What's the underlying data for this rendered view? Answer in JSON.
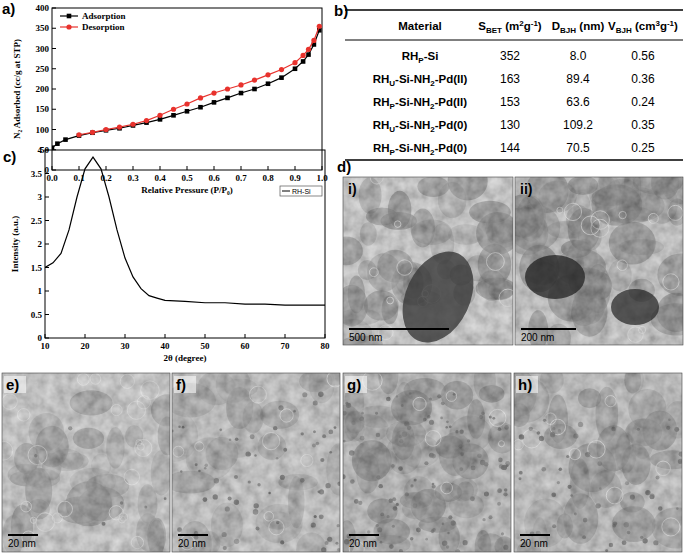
{
  "panel_labels": [
    "a)",
    "b)",
    "c)",
    "d)",
    "e)",
    "f)",
    "g)",
    "h)"
  ],
  "chart_data": [
    {
      "type": "line",
      "xlabel": "Relative Pressure (P/P₀)",
      "ylabel": "N₂ Adsorbed (cc/g at STP)",
      "x": [
        0.0,
        0.02,
        0.05,
        0.1,
        0.15,
        0.2,
        0.25,
        0.3,
        0.35,
        0.4,
        0.45,
        0.5,
        0.55,
        0.6,
        0.65,
        0.7,
        0.75,
        0.8,
        0.85,
        0.9,
        0.93,
        0.95,
        0.97,
        0.99
      ],
      "series": [
        {
          "name": "Adsorption",
          "color": "#000000",
          "marker": "square",
          "line_style": "solid",
          "values": [
            55,
            65,
            75,
            85,
            92,
            98,
            103,
            110,
            117,
            125,
            135,
            145,
            155,
            167,
            178,
            190,
            200,
            213,
            228,
            250,
            268,
            285,
            310,
            345
          ]
        },
        {
          "name": "Desorption",
          "color": "#e8322d",
          "marker": "circle",
          "line_style": "solid",
          "values": [
            null,
            null,
            null,
            87,
            93,
            100,
            106,
            113,
            122,
            135,
            150,
            163,
            178,
            190,
            200,
            210,
            222,
            235,
            248,
            265,
            283,
            298,
            320,
            355
          ]
        }
      ],
      "xlim": [
        0.0,
        1.0
      ],
      "xticks": [
        {
          "value": 0.0,
          "label": "0.0"
        },
        0.1,
        0.2,
        0.3,
        0.4,
        0.5,
        0.6,
        0.7,
        0.8,
        0.9,
        {
          "value": 1.0,
          "label": "1.0"
        }
      ],
      "ylim": [
        0,
        400
      ],
      "yticks": [
        0,
        50,
        100,
        150,
        200,
        250,
        300,
        350,
        400
      ],
      "grid": false,
      "legend": "upper left",
      "annotations": [
        "RH-Si"
      ]
    },
    {
      "type": "line",
      "xlabel": "2θ (degree)",
      "ylabel": "Intensity (a.u.)",
      "x": [
        10,
        12,
        14,
        16,
        18,
        20,
        22,
        24,
        26,
        28,
        30,
        32,
        34,
        36,
        38,
        40,
        45,
        50,
        55,
        60,
        65,
        70,
        75,
        80
      ],
      "series": [
        {
          "name": "RH-Si",
          "color": "#000000",
          "marker": "none",
          "line_style": "solid",
          "values": [
            1.5,
            1.6,
            1.8,
            2.3,
            3.0,
            3.6,
            3.85,
            3.6,
            3.0,
            2.3,
            1.7,
            1.3,
            1.05,
            0.9,
            0.85,
            0.8,
            0.78,
            0.75,
            0.75,
            0.72,
            0.72,
            0.7,
            0.7,
            0.7
          ]
        }
      ],
      "xlim": [
        10,
        80
      ],
      "xticks": [
        10,
        20,
        30,
        40,
        50,
        60,
        70,
        80
      ],
      "ylim": [
        0,
        4
      ],
      "yticks": [
        0,
        0.5,
        1,
        1.5,
        2,
        2.5,
        3,
        3.5,
        4
      ],
      "grid": false
    }
  ],
  "table": {
    "header": [
      [
        {
          "t": "Material"
        }
      ],
      [
        {
          "t": "S"
        },
        {
          "t": "BET",
          "sub": true
        },
        {
          "t": " (m"
        },
        {
          "t": "2",
          "sup": true
        },
        {
          "t": "g"
        },
        {
          "t": "-1",
          "sup": true
        },
        {
          "t": ")"
        }
      ],
      [
        {
          "t": "D"
        },
        {
          "t": "BJH",
          "sub": true
        },
        {
          "t": " (nm)"
        }
      ],
      [
        {
          "t": "V"
        },
        {
          "t": "BJH",
          "sub": true
        },
        {
          "t": " (cm"
        },
        {
          "t": "3",
          "sup": true
        },
        {
          "t": "g"
        },
        {
          "t": "-1",
          "sup": true
        },
        {
          "t": ")"
        }
      ]
    ],
    "rows": [
      [
        [
          {
            "t": "RH"
          },
          {
            "t": "P",
            "sub": true
          },
          {
            "t": "-Si"
          }
        ],
        "352",
        "8.0",
        "0.56"
      ],
      [
        [
          {
            "t": "RH"
          },
          {
            "t": "U",
            "sub": true
          },
          {
            "t": "-Si-NH"
          },
          {
            "t": "2",
            "sub": true
          },
          {
            "t": "-Pd(II)"
          }
        ],
        "163",
        "89.4",
        "0.36"
      ],
      [
        [
          {
            "t": "RH"
          },
          {
            "t": "P",
            "sub": true
          },
          {
            "t": "-Si-NH"
          },
          {
            "t": "2",
            "sub": true
          },
          {
            "t": "-Pd(II)"
          }
        ],
        "153",
        "63.6",
        "0.24"
      ],
      [
        [
          {
            "t": "RH"
          },
          {
            "t": "U",
            "sub": true
          },
          {
            "t": "-Si-NH"
          },
          {
            "t": "2",
            "sub": true
          },
          {
            "t": "-Pd(0)"
          }
        ],
        "130",
        "109.2",
        "0.35"
      ],
      [
        [
          {
            "t": "RH"
          },
          {
            "t": "P",
            "sub": true
          },
          {
            "t": "-Si-NH"
          },
          {
            "t": "2",
            "sub": true
          },
          {
            "t": "-Pd(0)"
          }
        ],
        "144",
        "70.5",
        "0.25"
      ]
    ]
  },
  "micrographs_d": [
    {
      "label": "i)",
      "scale_bar": "500 nm"
    },
    {
      "label": "ii)",
      "scale_bar": "200 nm"
    }
  ],
  "micrographs_efgh": [
    {
      "scale_bar": "20 nm"
    },
    {
      "scale_bar": "20 nm"
    },
    {
      "scale_bar": "20 nm"
    },
    {
      "scale_bar": "20 nm"
    }
  ]
}
